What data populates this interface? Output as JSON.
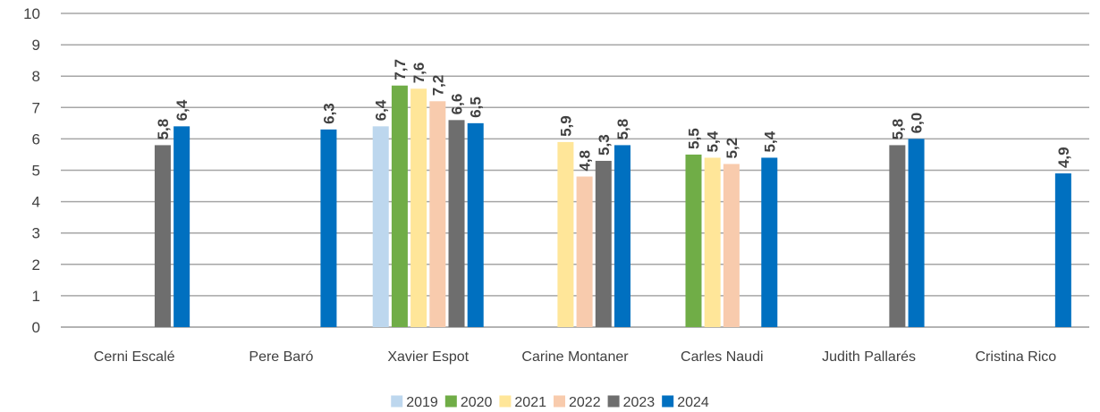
{
  "chart_data": {
    "type": "bar",
    "title": "",
    "xlabel": "",
    "ylabel": "",
    "ylim": [
      0,
      10
    ],
    "yticks": [
      "0",
      "1",
      "2",
      "3",
      "4",
      "5",
      "6",
      "7",
      "8",
      "9",
      "10"
    ],
    "grid": true,
    "legend_position": "bottom",
    "categories": [
      "Cerni Escalé",
      "Pere Baró",
      "Xavier Espot",
      "Carine Montaner",
      "Carles Naudi",
      "Judith Pallarés",
      "Cristina Rico"
    ],
    "series": [
      {
        "name": "2019",
        "color": "#bdd7ee",
        "values": [
          null,
          null,
          6.4,
          null,
          null,
          null,
          null
        ],
        "labels": [
          null,
          null,
          "6,4",
          null,
          null,
          null,
          null
        ]
      },
      {
        "name": "2020",
        "color": "#70ad47",
        "values": [
          null,
          null,
          7.7,
          null,
          5.5,
          null,
          null
        ],
        "labels": [
          null,
          null,
          "7,7",
          null,
          "5,5",
          null,
          null
        ]
      },
      {
        "name": "2021",
        "color": "#ffe699",
        "values": [
          null,
          null,
          7.6,
          5.9,
          5.4,
          null,
          null
        ],
        "labels": [
          null,
          null,
          "7,6",
          "5,9",
          "5,4",
          null,
          null
        ]
      },
      {
        "name": "2022",
        "color": "#f8cbad",
        "values": [
          null,
          null,
          7.2,
          4.8,
          5.2,
          null,
          null
        ],
        "labels": [
          null,
          null,
          "7,2",
          "4,8",
          "5,2",
          null,
          null
        ]
      },
      {
        "name": "2023",
        "color": "#6e6e6e",
        "values": [
          5.8,
          null,
          6.6,
          5.3,
          null,
          5.8,
          null
        ],
        "labels": [
          "5,8",
          null,
          "6,6",
          "5,3",
          null,
          "5,8",
          null
        ]
      },
      {
        "name": "2024",
        "color": "#0070c0",
        "values": [
          6.4,
          6.3,
          6.5,
          5.8,
          5.4,
          6.0,
          4.9
        ],
        "labels": [
          "6,4",
          "6,3",
          "6,5",
          "5,8",
          "5,4",
          "6,0",
          "4,9"
        ]
      }
    ]
  }
}
